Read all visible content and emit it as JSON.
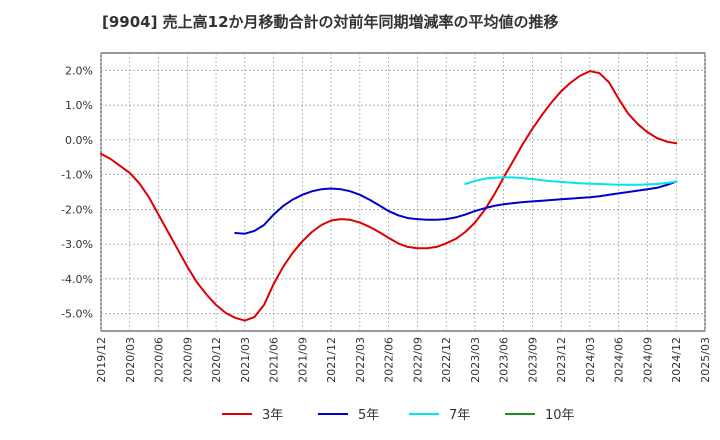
{
  "chart_data": {
    "type": "line",
    "title": "[9904]  売上高12か月移動合計の対前年同期増減率の平均値の推移",
    "xlabel": "",
    "ylabel": "",
    "ylim": [
      -5.5,
      2.5
    ],
    "y_ticks": [
      2.0,
      1.0,
      0.0,
      -1.0,
      -2.0,
      -3.0,
      -4.0,
      -5.0
    ],
    "y_tick_labels": [
      "2.0%",
      "1.0%",
      "0.0%",
      "-1.0%",
      "-2.0%",
      "-3.0%",
      "-4.0%",
      "-5.0%"
    ],
    "x_range": [
      "2019/12",
      "2025/03"
    ],
    "x_tick_labels": [
      "2019/12",
      "2020/03",
      "2020/06",
      "2020/09",
      "2020/12",
      "2021/03",
      "2021/06",
      "2021/09",
      "2021/12",
      "2022/03",
      "2022/06",
      "2022/09",
      "2022/12",
      "2023/03",
      "2023/06",
      "2023/09",
      "2023/12",
      "2024/03",
      "2024/06",
      "2024/09",
      "2024/12",
      "2025/03"
    ],
    "grid": true,
    "legend_position": "bottom",
    "series": [
      {
        "name": "3年",
        "color": "#dd0000",
        "x": [
          "2019/12",
          "2020/01",
          "2020/02",
          "2020/03",
          "2020/04",
          "2020/05",
          "2020/06",
          "2020/07",
          "2020/08",
          "2020/09",
          "2020/10",
          "2020/11",
          "2020/12",
          "2021/01",
          "2021/02",
          "2021/03",
          "2021/04",
          "2021/05",
          "2021/06",
          "2021/07",
          "2021/08",
          "2021/09",
          "2021/10",
          "2021/11",
          "2021/12",
          "2022/01",
          "2022/02",
          "2022/03",
          "2022/04",
          "2022/05",
          "2022/06",
          "2022/07",
          "2022/08",
          "2022/09",
          "2022/10",
          "2022/11",
          "2022/12",
          "2023/01",
          "2023/02",
          "2023/03",
          "2023/04",
          "2023/05",
          "2023/06",
          "2023/07",
          "2023/08",
          "2023/09",
          "2023/10",
          "2023/11",
          "2023/12",
          "2024/01",
          "2024/02",
          "2024/03",
          "2024/04",
          "2024/05",
          "2024/06",
          "2024/07",
          "2024/08",
          "2024/09",
          "2024/10",
          "2024/11",
          "2024/12"
        ],
        "values": [
          -0.4,
          -0.55,
          -0.75,
          -0.95,
          -1.25,
          -1.65,
          -2.15,
          -2.65,
          -3.15,
          -3.65,
          -4.1,
          -4.45,
          -4.75,
          -4.98,
          -5.12,
          -5.2,
          -5.1,
          -4.75,
          -4.15,
          -3.65,
          -3.25,
          -2.92,
          -2.65,
          -2.45,
          -2.32,
          -2.28,
          -2.3,
          -2.38,
          -2.5,
          -2.65,
          -2.82,
          -2.98,
          -3.08,
          -3.12,
          -3.12,
          -3.08,
          -2.98,
          -2.85,
          -2.65,
          -2.38,
          -2.02,
          -1.58,
          -1.08,
          -0.6,
          -0.12,
          0.32,
          0.72,
          1.08,
          1.4,
          1.65,
          1.85,
          1.98,
          1.92,
          1.65,
          1.18,
          0.75,
          0.45,
          0.22,
          0.05,
          -0.05,
          -0.1
        ]
      },
      {
        "name": "5年",
        "color": "#0000cc",
        "x": [
          "2021/02",
          "2021/03",
          "2021/04",
          "2021/05",
          "2021/06",
          "2021/07",
          "2021/08",
          "2021/09",
          "2021/10",
          "2021/11",
          "2021/12",
          "2022/01",
          "2022/02",
          "2022/03",
          "2022/04",
          "2022/05",
          "2022/06",
          "2022/07",
          "2022/08",
          "2022/09",
          "2022/10",
          "2022/11",
          "2022/12",
          "2023/01",
          "2023/02",
          "2023/03",
          "2023/04",
          "2023/05",
          "2023/06",
          "2023/07",
          "2023/08",
          "2023/09",
          "2023/10",
          "2023/11",
          "2023/12",
          "2024/01",
          "2024/02",
          "2024/03",
          "2024/04",
          "2024/05",
          "2024/06",
          "2024/07",
          "2024/08",
          "2024/09",
          "2024/10",
          "2024/11",
          "2024/12"
        ],
        "values": [
          -2.68,
          -2.7,
          -2.62,
          -2.45,
          -2.15,
          -1.9,
          -1.72,
          -1.58,
          -1.48,
          -1.42,
          -1.4,
          -1.42,
          -1.48,
          -1.58,
          -1.72,
          -1.88,
          -2.05,
          -2.17,
          -2.25,
          -2.28,
          -2.3,
          -2.3,
          -2.28,
          -2.23,
          -2.15,
          -2.05,
          -1.97,
          -1.9,
          -1.85,
          -1.82,
          -1.79,
          -1.77,
          -1.75,
          -1.73,
          -1.71,
          -1.69,
          -1.67,
          -1.65,
          -1.62,
          -1.58,
          -1.54,
          -1.5,
          -1.46,
          -1.42,
          -1.38,
          -1.3,
          -1.2
        ]
      },
      {
        "name": "7年",
        "color": "#00e5ee",
        "x": [
          "2023/02",
          "2023/03",
          "2023/04",
          "2023/05",
          "2023/06",
          "2023/07",
          "2023/08",
          "2023/09",
          "2023/10",
          "2023/11",
          "2023/12",
          "2024/01",
          "2024/02",
          "2024/03",
          "2024/04",
          "2024/05",
          "2024/06",
          "2024/07",
          "2024/08",
          "2024/09",
          "2024/10",
          "2024/11",
          "2024/12"
        ],
        "values": [
          -1.27,
          -1.18,
          -1.12,
          -1.09,
          -1.08,
          -1.08,
          -1.1,
          -1.13,
          -1.16,
          -1.19,
          -1.21,
          -1.23,
          -1.25,
          -1.26,
          -1.27,
          -1.28,
          -1.29,
          -1.29,
          -1.29,
          -1.28,
          -1.27,
          -1.24,
          -1.2
        ]
      },
      {
        "name": "10年",
        "color": "#228b22",
        "x": [],
        "values": []
      }
    ]
  }
}
